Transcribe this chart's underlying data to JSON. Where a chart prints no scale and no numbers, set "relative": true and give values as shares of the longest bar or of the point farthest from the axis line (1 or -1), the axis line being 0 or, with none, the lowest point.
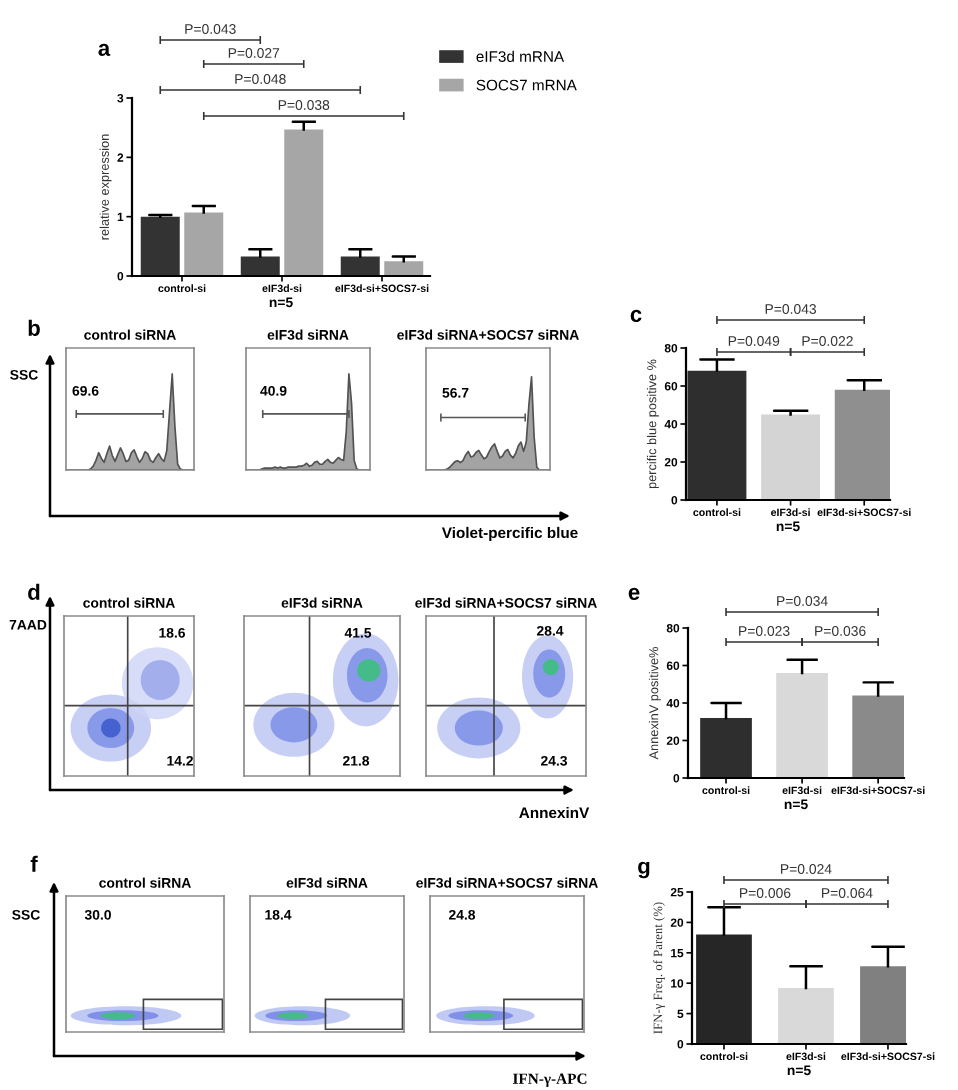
{
  "chart_data": [
    {
      "type": "bar",
      "title": "a",
      "categories": [
        "control-si",
        "eIF3d-si",
        "eIF3d-si+SOCS7-si"
      ],
      "series": [
        {
          "name": "eIF3d mRNA",
          "color": "#333333",
          "values": [
            1.0,
            0.33,
            0.33
          ],
          "errors": [
            [
              1.0,
              1.03
            ],
            [
              0.33,
              0.45
            ],
            [
              0.33,
              0.45
            ]
          ]
        },
        {
          "name": "SOCS7 mRNA",
          "color": "#a6a6a6",
          "values": [
            1.07,
            2.47,
            0.25
          ],
          "errors": [
            [
              1.07,
              1.18
            ],
            [
              2.47,
              2.6
            ],
            [
              0.25,
              0.33
            ]
          ]
        }
      ],
      "ylim": [
        0,
        3
      ],
      "yticks": [
        0,
        1,
        2,
        3
      ],
      "ylabel": "relative expression",
      "xlabel": "n=5",
      "legend": "top right",
      "annotations": [
        "P=0.043",
        "P=0.027",
        "P=0.048",
        "P=0.038"
      ]
    },
    {
      "type": "other",
      "title": "b",
      "ylabel": "SSC",
      "xlabel": "Violet-percific blue"
    },
    {
      "type": "area",
      "title": "control siRNA",
      "relative": true,
      "categories": [
        null,
        null,
        null,
        null,
        null,
        null,
        null,
        null,
        null,
        null,
        null,
        null,
        null,
        null,
        null,
        null,
        null,
        null,
        null,
        null,
        null,
        null,
        null,
        null,
        null,
        null,
        null,
        null,
        null,
        null,
        null,
        null,
        null,
        null,
        null,
        null,
        null,
        null,
        null,
        null,
        null,
        null,
        null,
        null,
        null,
        null,
        null,
        null
      ],
      "values": [
        0,
        0,
        0,
        0,
        0,
        0,
        0,
        0,
        0,
        0.01,
        0.04,
        0.1,
        0.18,
        0.12,
        0.08,
        0.17,
        0.25,
        0.15,
        0.09,
        0.16,
        0.23,
        0.17,
        0.09,
        0.1,
        0.18,
        0.21,
        0.14,
        0.08,
        0.12,
        0.19,
        0.17,
        0.1,
        0.08,
        0.13,
        0.17,
        0.12,
        0.09,
        0.2,
        0.6,
        1.0,
        0.45,
        0.06,
        0.01,
        0,
        0,
        0,
        0,
        0
      ],
      "color": "#a3a3a3",
      "annotations": [
        "69.6"
      ]
    },
    {
      "type": "area",
      "title": "eIF3d siRNA",
      "relative": true,
      "categories": [
        null,
        null,
        null,
        null,
        null,
        null,
        null,
        null,
        null,
        null,
        null,
        null,
        null,
        null,
        null,
        null,
        null,
        null,
        null,
        null,
        null,
        null,
        null,
        null,
        null,
        null,
        null,
        null,
        null,
        null,
        null,
        null,
        null,
        null,
        null,
        null,
        null,
        null,
        null,
        null,
        null,
        null,
        null,
        null,
        null,
        null,
        null,
        null
      ],
      "values": [
        0,
        0,
        0,
        0,
        0,
        0,
        0.01,
        0.02,
        0.02,
        0.02,
        0.02,
        0.03,
        0.02,
        0.03,
        0.02,
        0.02,
        0.03,
        0.03,
        0.03,
        0.03,
        0.04,
        0.04,
        0.05,
        0.07,
        0.04,
        0.05,
        0.08,
        0.09,
        0.06,
        0.06,
        0.09,
        0.11,
        0.08,
        0.07,
        0.1,
        0.13,
        0.11,
        0.1,
        0.4,
        1.0,
        0.7,
        0.1,
        0.01,
        0,
        0,
        0,
        0,
        0
      ],
      "color": "#a3a3a3",
      "annotations": [
        "40.9"
      ]
    },
    {
      "type": "area",
      "title": "eIF3d siRNA+SOCS7 siRNA",
      "relative": true,
      "categories": [
        null,
        null,
        null,
        null,
        null,
        null,
        null,
        null,
        null,
        null,
        null,
        null,
        null,
        null,
        null,
        null,
        null,
        null,
        null,
        null,
        null,
        null,
        null,
        null,
        null,
        null,
        null,
        null,
        null,
        null,
        null,
        null,
        null,
        null,
        null,
        null,
        null,
        null,
        null,
        null,
        null,
        null,
        null,
        null,
        null,
        null,
        null,
        null
      ],
      "values": [
        0,
        0,
        0,
        0,
        0,
        0,
        0,
        0,
        0.01,
        0.03,
        0.06,
        0.09,
        0.1,
        0.08,
        0.1,
        0.16,
        0.2,
        0.14,
        0.15,
        0.19,
        0.21,
        0.16,
        0.12,
        0.14,
        0.2,
        0.25,
        0.28,
        0.2,
        0.13,
        0.15,
        0.2,
        0.22,
        0.16,
        0.13,
        0.18,
        0.26,
        0.3,
        0.2,
        0.3,
        0.7,
        1.0,
        0.35,
        0.03,
        0,
        0,
        0,
        0,
        0
      ],
      "color": "#a3a3a3",
      "annotations": [
        "56.7"
      ]
    },
    {
      "type": "bar",
      "title": "c",
      "categories": [
        "control-si",
        "eIF3d-si",
        "eIF3d-si+SOCS7-si"
      ],
      "values": [
        68,
        45,
        58
      ],
      "colors": [
        "#2e2e2e",
        "#d4d4d4",
        "#8f8f8f"
      ],
      "errors": [
        [
          68,
          74
        ],
        [
          45,
          47
        ],
        [
          58,
          63
        ]
      ],
      "ylim": [
        0,
        80
      ],
      "yticks": [
        0,
        20,
        40,
        60,
        80
      ],
      "ylabel": "percific blue positive %",
      "xlabel": "n=5",
      "annotations": [
        "P=0.043",
        "P=0.049",
        "P=0.022"
      ]
    },
    {
      "type": "other",
      "title": "d",
      "ylabel": "7AAD",
      "xlabel": "AnnexinV"
    },
    {
      "type": "other",
      "title": "control siRNA",
      "annotations": [
        "18.6",
        "14.2"
      ]
    },
    {
      "type": "other",
      "title": "eIF3d siRNA",
      "annotations": [
        "41.5",
        "21.8"
      ]
    },
    {
      "type": "other",
      "title": "eIF3d siRNA+SOCS7 siRNA",
      "annotations": [
        "28.4",
        "24.3"
      ]
    },
    {
      "type": "bar",
      "title": "e",
      "categories": [
        "control-si",
        "eIF3d-si",
        "eIF3d-si+SOCS7-si"
      ],
      "values": [
        32,
        56,
        44
      ],
      "colors": [
        "#2e2e2e",
        "#d9d9d9",
        "#8a8a8a"
      ],
      "errors": [
        [
          32,
          40
        ],
        [
          56,
          63
        ],
        [
          44,
          51
        ]
      ],
      "ylim": [
        0,
        80
      ],
      "yticks": [
        0,
        20,
        40,
        60,
        80
      ],
      "ylabel": "AnnexinV positive%",
      "xlabel": "n=5",
      "annotations": [
        "P=0.034",
        "P=0.023",
        "P=0.036"
      ]
    },
    {
      "type": "other",
      "title": "f",
      "ylabel": "SSC",
      "xlabel": "IFN-γ-APC"
    },
    {
      "type": "other",
      "title": "control siRNA",
      "annotations": [
        "30.0"
      ]
    },
    {
      "type": "other",
      "title": "eIF3d siRNA",
      "annotations": [
        "18.4"
      ]
    },
    {
      "type": "other",
      "title": "eIF3d siRNA+SOCS7 siRNA",
      "annotations": [
        "24.8"
      ]
    },
    {
      "type": "bar",
      "title": "g",
      "categories": [
        "control-si",
        "eIF3d-si",
        "eIF3d-si+SOCS7-si"
      ],
      "values": [
        18,
        9.2,
        12.8
      ],
      "colors": [
        "#262626",
        "#d9d9d9",
        "#808080"
      ],
      "errors": [
        [
          18,
          22.5
        ],
        [
          9.2,
          12.8
        ],
        [
          12.8,
          16
        ]
      ],
      "ylim": [
        0,
        25
      ],
      "yticks": [
        0,
        5,
        10,
        15,
        20,
        25
      ],
      "ylabel": "IFN-γ Freq. of Parent (%)",
      "xlabel": "n=5",
      "annotations": [
        "P=0.024",
        "P=0.006",
        "P=0.064"
      ]
    }
  ]
}
